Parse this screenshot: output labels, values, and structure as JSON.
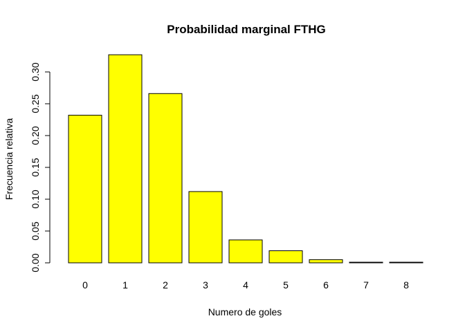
{
  "chart_data": {
    "type": "bar",
    "title": "Probabilidad marginal FTHG",
    "xlabel": "Numero de goles",
    "ylabel": "Frecuencia relativa",
    "categories": [
      "0",
      "1",
      "2",
      "3",
      "4",
      "5",
      "6",
      "7",
      "8"
    ],
    "values": [
      0.232,
      0.327,
      0.266,
      0.112,
      0.036,
      0.019,
      0.005,
      0.001,
      0.001
    ],
    "ylim": [
      0,
      0.33
    ],
    "yticks": [
      0.0,
      0.05,
      0.1,
      0.15,
      0.2,
      0.25,
      0.3
    ],
    "ytick_labels": [
      "0.00",
      "0.05",
      "0.10",
      "0.15",
      "0.20",
      "0.25",
      "0.30"
    ],
    "bar_color": "#ffff00",
    "grid": false
  }
}
